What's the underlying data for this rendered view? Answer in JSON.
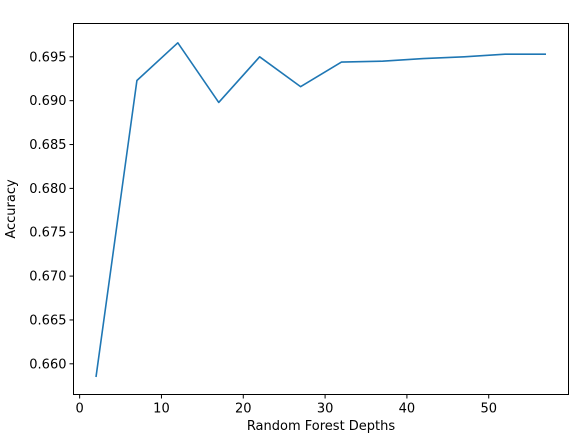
{
  "chart_data": {
    "type": "line",
    "title": "",
    "xlabel": "Random Forest Depths",
    "ylabel": "Accuracy",
    "xlim": [
      -0.75,
      59.75
    ],
    "ylim": [
      0.6565,
      0.6988
    ],
    "xticks": [
      0,
      10,
      20,
      30,
      40,
      50
    ],
    "xtick_labels": [
      "0",
      "10",
      "20",
      "30",
      "40",
      "50"
    ],
    "yticks": [
      0.66,
      0.665,
      0.67,
      0.675,
      0.68,
      0.685,
      0.69,
      0.695
    ],
    "ytick_labels": [
      "0.660",
      "0.665",
      "0.670",
      "0.675",
      "0.680",
      "0.685",
      "0.690",
      "0.695"
    ],
    "grid": false,
    "line_color": "#1f77b4",
    "series": [
      {
        "x": [
          2,
          7,
          12,
          17,
          22,
          27,
          32,
          37,
          42,
          47,
          52,
          57
        ],
        "values": [
          0.6585,
          0.6923,
          0.6966,
          0.6898,
          0.695,
          0.6916,
          0.6944,
          0.6945,
          0.6948,
          0.695,
          0.6953,
          0.6953
        ]
      }
    ]
  }
}
